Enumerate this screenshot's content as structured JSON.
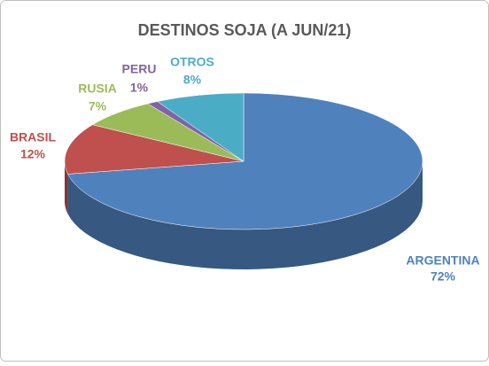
{
  "chart_data": {
    "type": "pie",
    "title": "DESTINOS SOJA (A JUN/21)",
    "categories": [
      "ARGENTINA",
      "BRASIL",
      "RUSIA",
      "PERU",
      "OTROS"
    ],
    "values": [
      72,
      12,
      7,
      1,
      8
    ],
    "value_labels": [
      "72%",
      "12%",
      "7%",
      "1%",
      "8%"
    ],
    "colors": [
      "#4f81bd",
      "#c0504d",
      "#9bbb59",
      "#8064a2",
      "#4bacc6"
    ]
  }
}
